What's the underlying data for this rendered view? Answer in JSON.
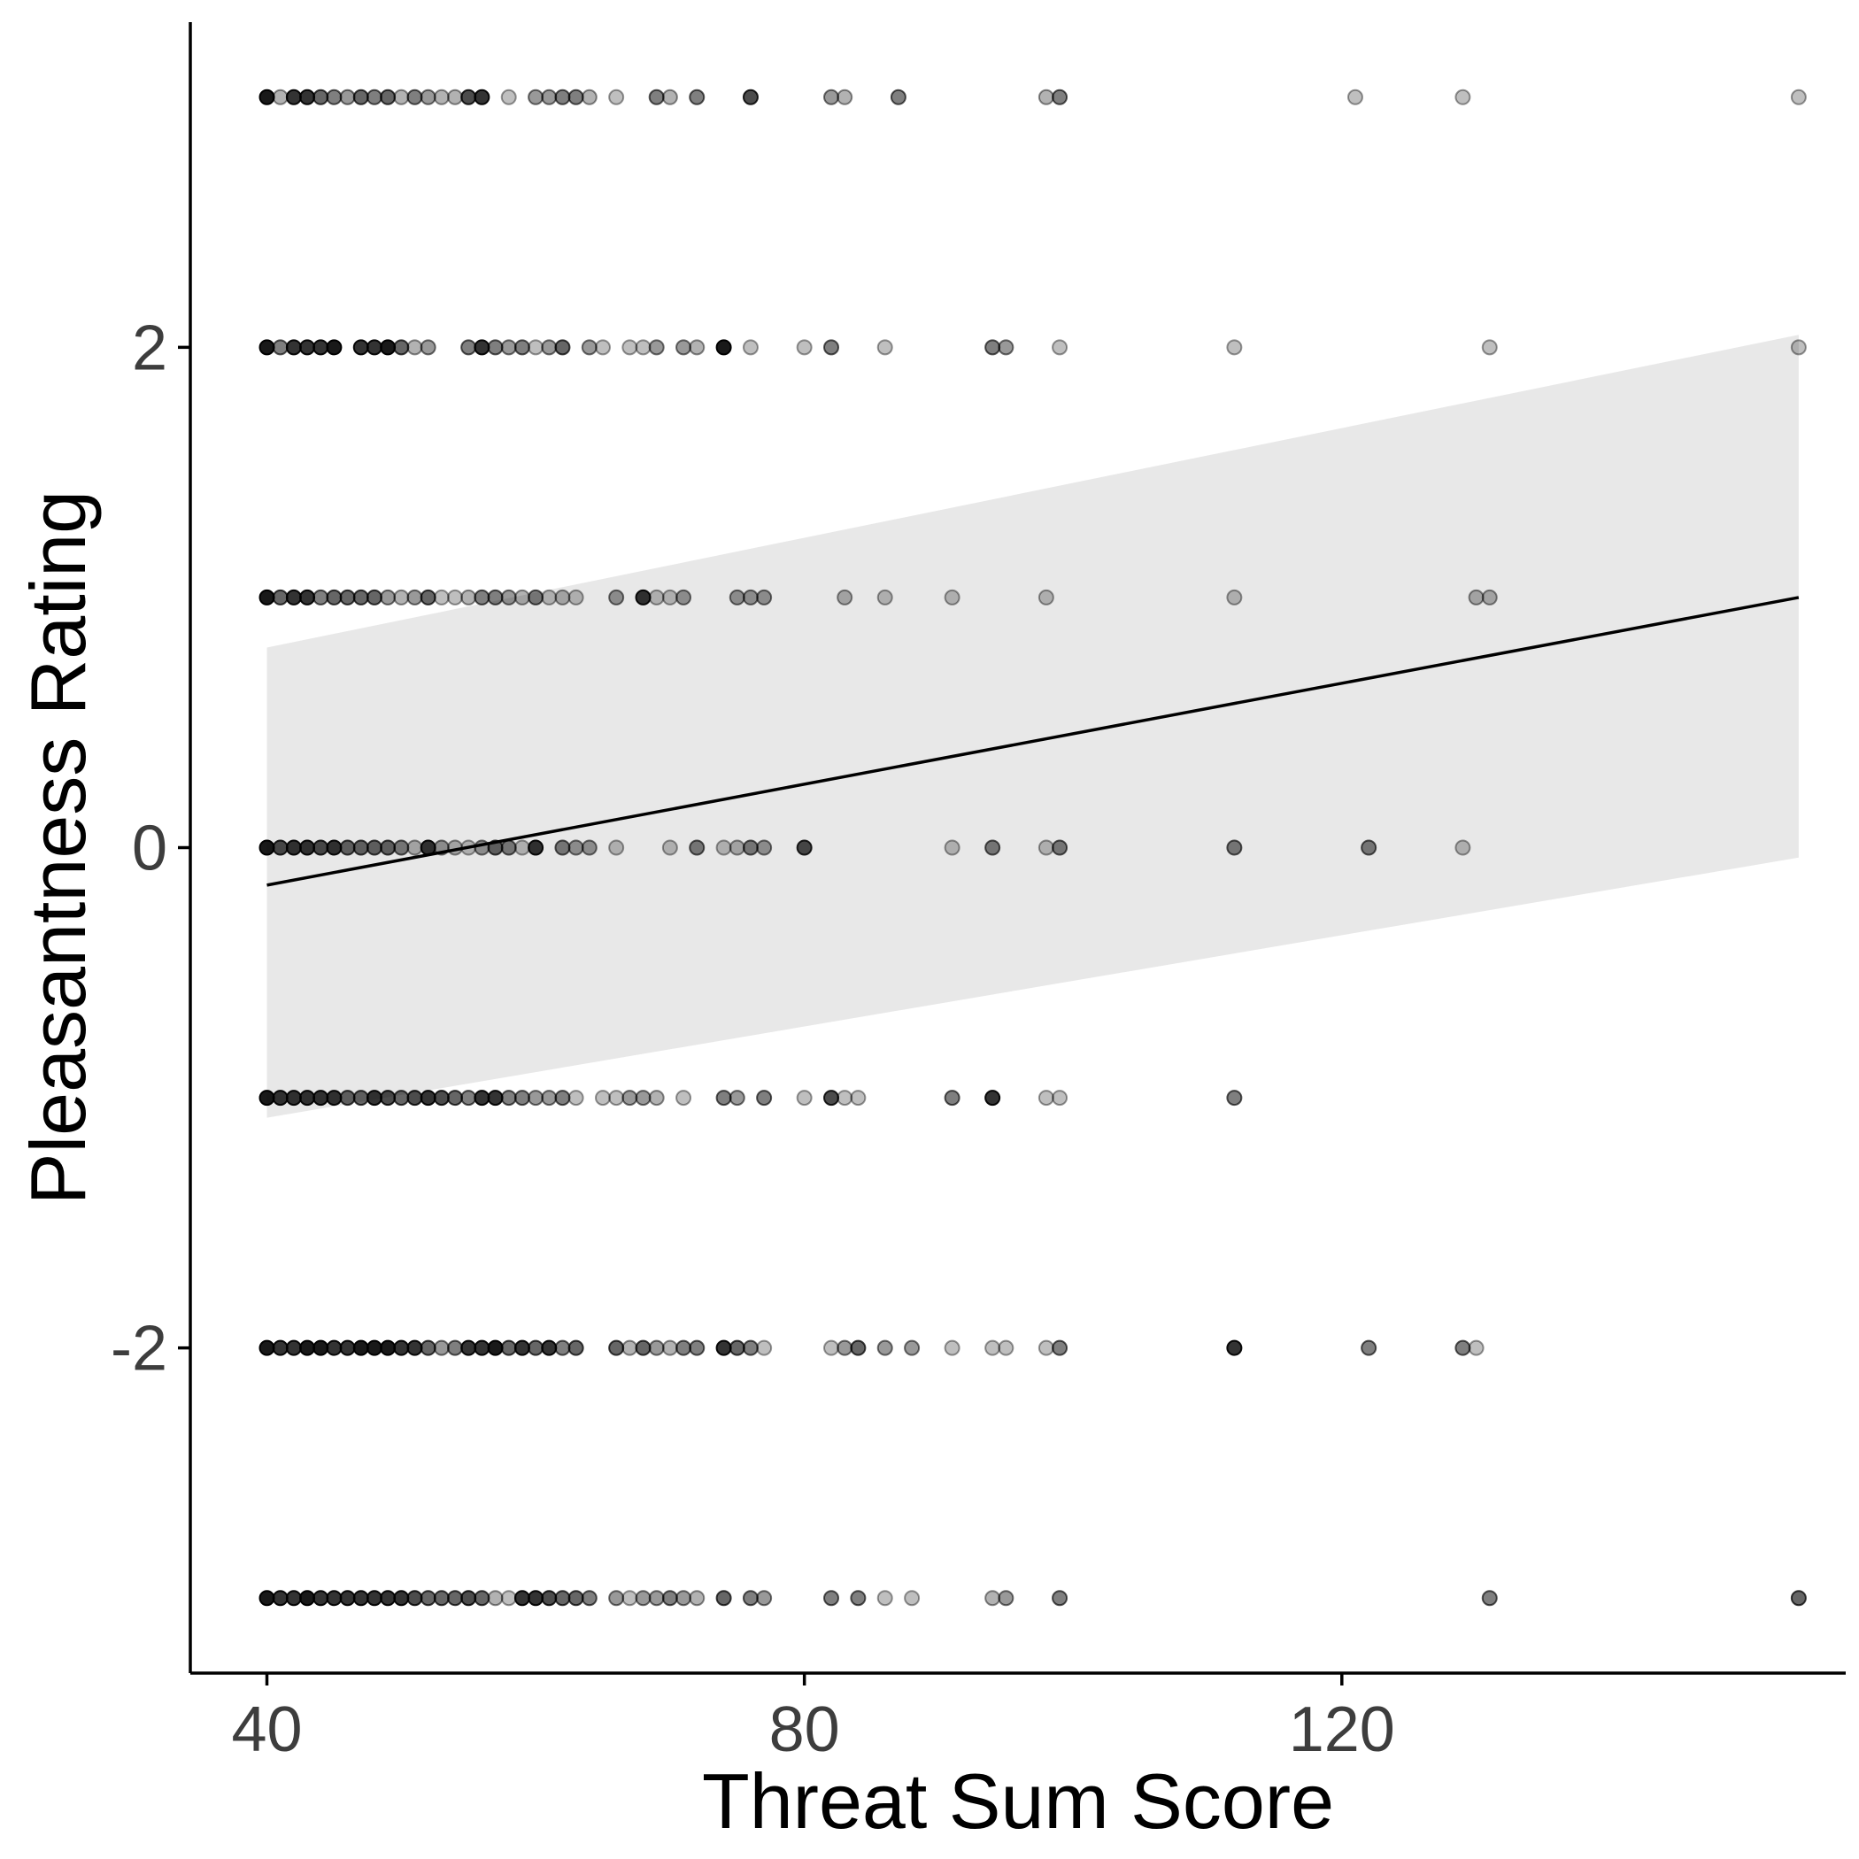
{
  "chart_data": {
    "type": "scatter",
    "title": "",
    "xlabel": "Threat Sum Score",
    "ylabel": "Pleasantness Rating",
    "xlim": [
      34.3,
      157.5
    ],
    "ylim": [
      -3.3,
      3.3
    ],
    "x_ticks": [
      40,
      80,
      120
    ],
    "x_tick_labels": [
      "40",
      "80",
      "120"
    ],
    "y_ticks": [
      -2,
      0,
      2
    ],
    "y_tick_labels": [
      "-2",
      "0",
      "2"
    ],
    "grid": false,
    "legend": "none",
    "colors": {
      "point": "#000000",
      "band": "#e8e8e8",
      "line": "#000000",
      "axis": "#000000"
    },
    "regression": {
      "x": [
        40,
        154
      ],
      "fit": [
        -0.15,
        1.0
      ],
      "ci_lower": [
        -1.08,
        -0.04
      ],
      "ci_upper": [
        0.8,
        2.05
      ]
    },
    "points": [
      {
        "y": 3,
        "pts": [
          [
            40,
            0.9
          ],
          [
            41,
            0.3
          ],
          [
            42,
            0.8
          ],
          [
            43,
            0.8
          ],
          [
            44,
            0.6
          ],
          [
            45,
            0.5
          ],
          [
            46,
            0.4
          ],
          [
            47,
            0.6
          ],
          [
            48,
            0.5
          ],
          [
            49,
            0.6
          ],
          [
            50,
            0.3
          ],
          [
            51,
            0.5
          ],
          [
            52,
            0.4
          ],
          [
            53,
            0.3
          ],
          [
            54,
            0.3
          ],
          [
            55,
            0.7
          ],
          [
            56,
            0.8
          ],
          [
            58,
            0.25
          ],
          [
            60,
            0.4
          ],
          [
            61,
            0.4
          ],
          [
            62,
            0.5
          ],
          [
            63,
            0.5
          ],
          [
            64,
            0.3
          ],
          [
            66,
            0.25
          ],
          [
            69,
            0.5
          ],
          [
            70,
            0.3
          ],
          [
            72,
            0.5
          ],
          [
            76,
            0.7
          ],
          [
            82,
            0.4
          ],
          [
            83,
            0.3
          ],
          [
            87,
            0.5
          ],
          [
            98,
            0.3
          ],
          [
            99,
            0.5
          ],
          [
            121,
            0.25
          ],
          [
            129,
            0.25
          ],
          [
            154,
            0.25
          ]
        ]
      },
      {
        "y": 2,
        "pts": [
          [
            40,
            0.9
          ],
          [
            41,
            0.5
          ],
          [
            42,
            0.8
          ],
          [
            43,
            0.8
          ],
          [
            44,
            0.8
          ],
          [
            45,
            0.9
          ],
          [
            47,
            0.8
          ],
          [
            48,
            0.8
          ],
          [
            49,
            0.9
          ],
          [
            50,
            0.6
          ],
          [
            51,
            0.3
          ],
          [
            52,
            0.4
          ],
          [
            55,
            0.5
          ],
          [
            56,
            0.8
          ],
          [
            57,
            0.5
          ],
          [
            58,
            0.4
          ],
          [
            59,
            0.5
          ],
          [
            60,
            0.25
          ],
          [
            61,
            0.4
          ],
          [
            62,
            0.6
          ],
          [
            64,
            0.4
          ],
          [
            65,
            0.25
          ],
          [
            67,
            0.25
          ],
          [
            68,
            0.25
          ],
          [
            69,
            0.4
          ],
          [
            71,
            0.4
          ],
          [
            72,
            0.3
          ],
          [
            74,
            0.9
          ],
          [
            76,
            0.25
          ],
          [
            80,
            0.25
          ],
          [
            82,
            0.5
          ],
          [
            86,
            0.25
          ],
          [
            94,
            0.5
          ],
          [
            95,
            0.4
          ],
          [
            99,
            0.25
          ],
          [
            112,
            0.25
          ],
          [
            131,
            0.25
          ],
          [
            154,
            0.25
          ]
        ]
      },
      {
        "y": 1,
        "pts": [
          [
            40,
            0.9
          ],
          [
            41,
            0.6
          ],
          [
            42,
            0.8
          ],
          [
            43,
            0.8
          ],
          [
            44,
            0.5
          ],
          [
            45,
            0.6
          ],
          [
            46,
            0.6
          ],
          [
            47,
            0.6
          ],
          [
            48,
            0.6
          ],
          [
            49,
            0.4
          ],
          [
            50,
            0.3
          ],
          [
            51,
            0.4
          ],
          [
            52,
            0.6
          ],
          [
            53,
            0.25
          ],
          [
            54,
            0.25
          ],
          [
            55,
            0.3
          ],
          [
            56,
            0.5
          ],
          [
            57,
            0.5
          ],
          [
            58,
            0.4
          ],
          [
            59,
            0.3
          ],
          [
            60,
            0.5
          ],
          [
            61,
            0.25
          ],
          [
            62,
            0.3
          ],
          [
            63,
            0.25
          ],
          [
            66,
            0.4
          ],
          [
            68,
            0.8
          ],
          [
            69,
            0.25
          ],
          [
            70,
            0.25
          ],
          [
            71,
            0.4
          ],
          [
            75,
            0.4
          ],
          [
            76,
            0.4
          ],
          [
            77,
            0.4
          ],
          [
            83,
            0.3
          ],
          [
            86,
            0.25
          ],
          [
            91,
            0.25
          ],
          [
            98,
            0.25
          ],
          [
            112,
            0.25
          ],
          [
            130,
            0.3
          ],
          [
            131,
            0.3
          ]
        ]
      },
      {
        "y": 0,
        "pts": [
          [
            40,
            0.9
          ],
          [
            41,
            0.7
          ],
          [
            42,
            0.8
          ],
          [
            43,
            0.8
          ],
          [
            44,
            0.7
          ],
          [
            45,
            0.8
          ],
          [
            46,
            0.6
          ],
          [
            47,
            0.6
          ],
          [
            48,
            0.6
          ],
          [
            49,
            0.6
          ],
          [
            50,
            0.5
          ],
          [
            51,
            0.3
          ],
          [
            52,
            0.8
          ],
          [
            53,
            0.4
          ],
          [
            54,
            0.3
          ],
          [
            55,
            0.25
          ],
          [
            56,
            0.4
          ],
          [
            57,
            0.6
          ],
          [
            58,
            0.5
          ],
          [
            59,
            0.25
          ],
          [
            60,
            0.8
          ],
          [
            62,
            0.5
          ],
          [
            63,
            0.4
          ],
          [
            64,
            0.4
          ],
          [
            66,
            0.25
          ],
          [
            70,
            0.25
          ],
          [
            72,
            0.5
          ],
          [
            74,
            0.25
          ],
          [
            75,
            0.3
          ],
          [
            76,
            0.5
          ],
          [
            77,
            0.4
          ],
          [
            80,
            0.7
          ],
          [
            91,
            0.25
          ],
          [
            94,
            0.5
          ],
          [
            98,
            0.25
          ],
          [
            99,
            0.5
          ],
          [
            112,
            0.5
          ],
          [
            122,
            0.5
          ],
          [
            129,
            0.25
          ]
        ]
      },
      {
        "y": -1,
        "pts": [
          [
            40,
            0.9
          ],
          [
            41,
            0.8
          ],
          [
            42,
            0.8
          ],
          [
            43,
            0.8
          ],
          [
            44,
            0.8
          ],
          [
            45,
            0.8
          ],
          [
            46,
            0.6
          ],
          [
            47,
            0.6
          ],
          [
            48,
            0.8
          ],
          [
            49,
            0.7
          ],
          [
            50,
            0.6
          ],
          [
            51,
            0.7
          ],
          [
            52,
            0.8
          ],
          [
            53,
            0.7
          ],
          [
            54,
            0.6
          ],
          [
            55,
            0.5
          ],
          [
            56,
            0.8
          ],
          [
            57,
            0.8
          ],
          [
            58,
            0.5
          ],
          [
            59,
            0.5
          ],
          [
            60,
            0.4
          ],
          [
            61,
            0.4
          ],
          [
            62,
            0.5
          ],
          [
            63,
            0.25
          ],
          [
            65,
            0.25
          ],
          [
            66,
            0.25
          ],
          [
            67,
            0.4
          ],
          [
            68,
            0.4
          ],
          [
            69,
            0.3
          ],
          [
            71,
            0.25
          ],
          [
            74,
            0.5
          ],
          [
            75,
            0.4
          ],
          [
            77,
            0.5
          ],
          [
            80,
            0.25
          ],
          [
            82,
            0.7
          ],
          [
            83,
            0.25
          ],
          [
            84,
            0.25
          ],
          [
            91,
            0.5
          ],
          [
            94,
            0.8
          ],
          [
            98,
            0.25
          ],
          [
            99,
            0.25
          ],
          [
            112,
            0.5
          ]
        ]
      },
      {
        "y": -2,
        "pts": [
          [
            40,
            0.9
          ],
          [
            41,
            0.8
          ],
          [
            42,
            0.8
          ],
          [
            43,
            0.9
          ],
          [
            44,
            0.9
          ],
          [
            45,
            0.8
          ],
          [
            46,
            0.8
          ],
          [
            47,
            0.9
          ],
          [
            48,
            0.9
          ],
          [
            49,
            0.9
          ],
          [
            50,
            0.8
          ],
          [
            51,
            0.8
          ],
          [
            52,
            0.6
          ],
          [
            53,
            0.4
          ],
          [
            54,
            0.5
          ],
          [
            55,
            0.8
          ],
          [
            56,
            0.8
          ],
          [
            57,
            0.9
          ],
          [
            58,
            0.6
          ],
          [
            59,
            0.8
          ],
          [
            60,
            0.6
          ],
          [
            61,
            0.8
          ],
          [
            62,
            0.5
          ],
          [
            63,
            0.6
          ],
          [
            66,
            0.6
          ],
          [
            67,
            0.3
          ],
          [
            68,
            0.6
          ],
          [
            69,
            0.4
          ],
          [
            70,
            0.3
          ],
          [
            71,
            0.5
          ],
          [
            72,
            0.5
          ],
          [
            74,
            0.8
          ],
          [
            75,
            0.6
          ],
          [
            76,
            0.5
          ],
          [
            77,
            0.25
          ],
          [
            82,
            0.25
          ],
          [
            83,
            0.4
          ],
          [
            84,
            0.6
          ],
          [
            86,
            0.4
          ],
          [
            88,
            0.4
          ],
          [
            91,
            0.25
          ],
          [
            94,
            0.25
          ],
          [
            95,
            0.25
          ],
          [
            98,
            0.25
          ],
          [
            99,
            0.5
          ],
          [
            112,
            0.8
          ],
          [
            122,
            0.5
          ],
          [
            129,
            0.5
          ],
          [
            130,
            0.25
          ]
        ]
      },
      {
        "y": -3,
        "pts": [
          [
            40,
            0.9
          ],
          [
            41,
            0.8
          ],
          [
            42,
            0.8
          ],
          [
            43,
            0.9
          ],
          [
            44,
            0.8
          ],
          [
            45,
            0.8
          ],
          [
            46,
            0.8
          ],
          [
            47,
            0.8
          ],
          [
            48,
            0.8
          ],
          [
            49,
            0.8
          ],
          [
            50,
            0.8
          ],
          [
            51,
            0.7
          ],
          [
            52,
            0.6
          ],
          [
            53,
            0.6
          ],
          [
            54,
            0.6
          ],
          [
            55,
            0.7
          ],
          [
            56,
            0.6
          ],
          [
            57,
            0.3
          ],
          [
            58,
            0.25
          ],
          [
            59,
            0.8
          ],
          [
            60,
            0.8
          ],
          [
            61,
            0.7
          ],
          [
            62,
            0.6
          ],
          [
            63,
            0.6
          ],
          [
            64,
            0.5
          ],
          [
            66,
            0.4
          ],
          [
            67,
            0.25
          ],
          [
            68,
            0.4
          ],
          [
            69,
            0.4
          ],
          [
            70,
            0.5
          ],
          [
            71,
            0.4
          ],
          [
            72,
            0.3
          ],
          [
            74,
            0.6
          ],
          [
            76,
            0.5
          ],
          [
            77,
            0.4
          ],
          [
            82,
            0.5
          ],
          [
            84,
            0.5
          ],
          [
            86,
            0.25
          ],
          [
            88,
            0.25
          ],
          [
            94,
            0.3
          ],
          [
            95,
            0.4
          ],
          [
            99,
            0.5
          ],
          [
            131,
            0.5
          ],
          [
            154,
            0.6
          ]
        ]
      }
    ]
  }
}
